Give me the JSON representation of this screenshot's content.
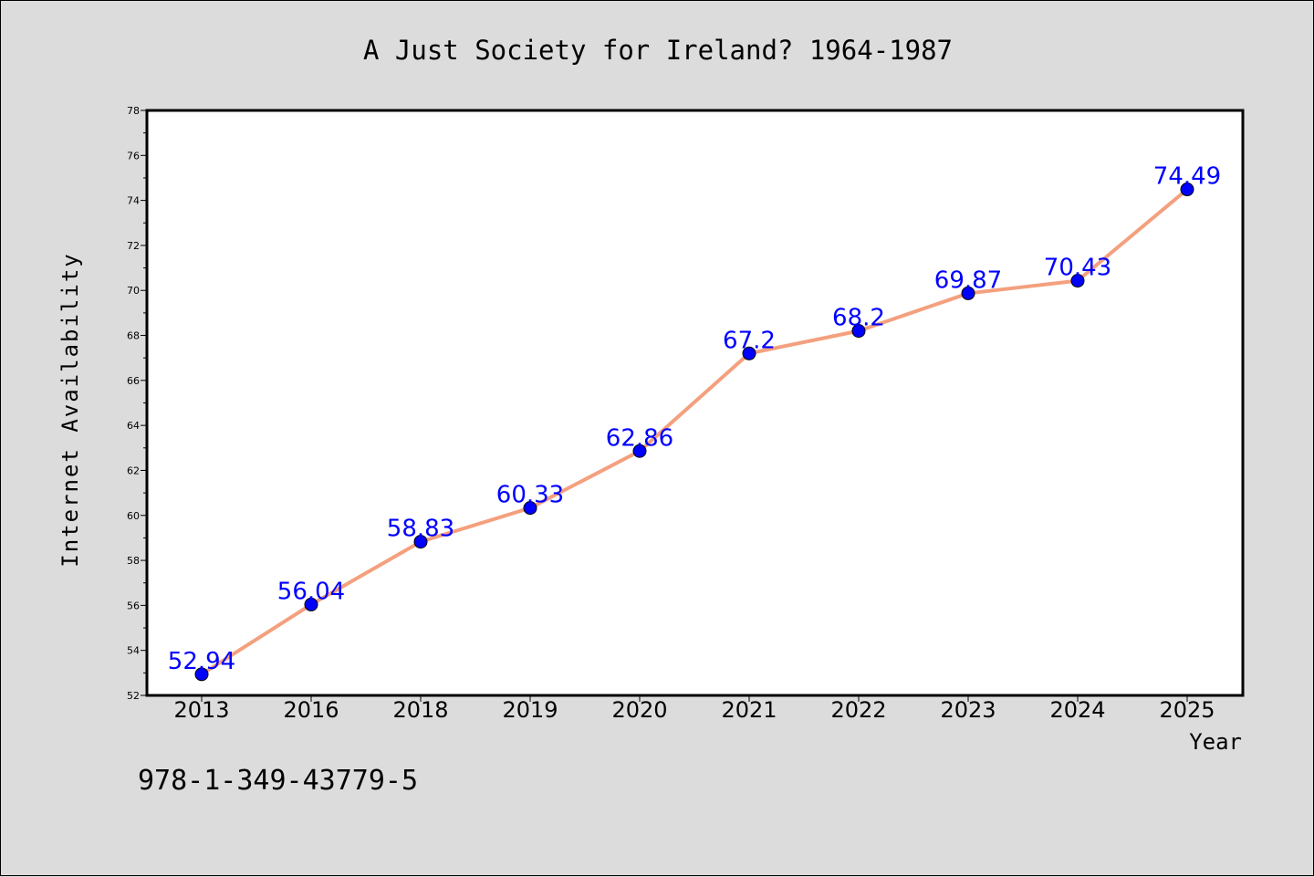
{
  "chart_data": {
    "type": "line",
    "title": "A Just Society for Ireland? 1964-1987",
    "xlabel": "Year",
    "ylabel": "Internet Availability",
    "categories": [
      "2013",
      "2016",
      "2018",
      "2019",
      "2020",
      "2021",
      "2022",
      "2023",
      "2024",
      "2025"
    ],
    "series": [
      {
        "values": [
          52.94,
          56.04,
          58.83,
          60.33,
          62.86,
          67.2,
          68.2,
          69.87,
          70.43,
          74.49
        ],
        "labels": [
          "52.94",
          "56.04",
          "58.83",
          "60.33",
          "62.86",
          "67.2",
          "68.2",
          "69.87",
          "70.43",
          "74.49"
        ],
        "line_color": "#f4a07e",
        "marker_color": "#0000ff"
      }
    ],
    "ylim": [
      52,
      78
    ],
    "yticks": [
      "52",
      "54",
      "56",
      "58",
      "60",
      "62",
      "64",
      "66",
      "68",
      "70",
      "72",
      "74",
      "76",
      "78"
    ],
    "grid": false,
    "legend": "none"
  },
  "footnote": "978-1-349-43779-5",
  "colors": {
    "background": "#dcdcdc",
    "plot_background": "#ffffff",
    "line": "#f4a07e",
    "marker": "#0000ff",
    "data_label": "#0000ff"
  }
}
